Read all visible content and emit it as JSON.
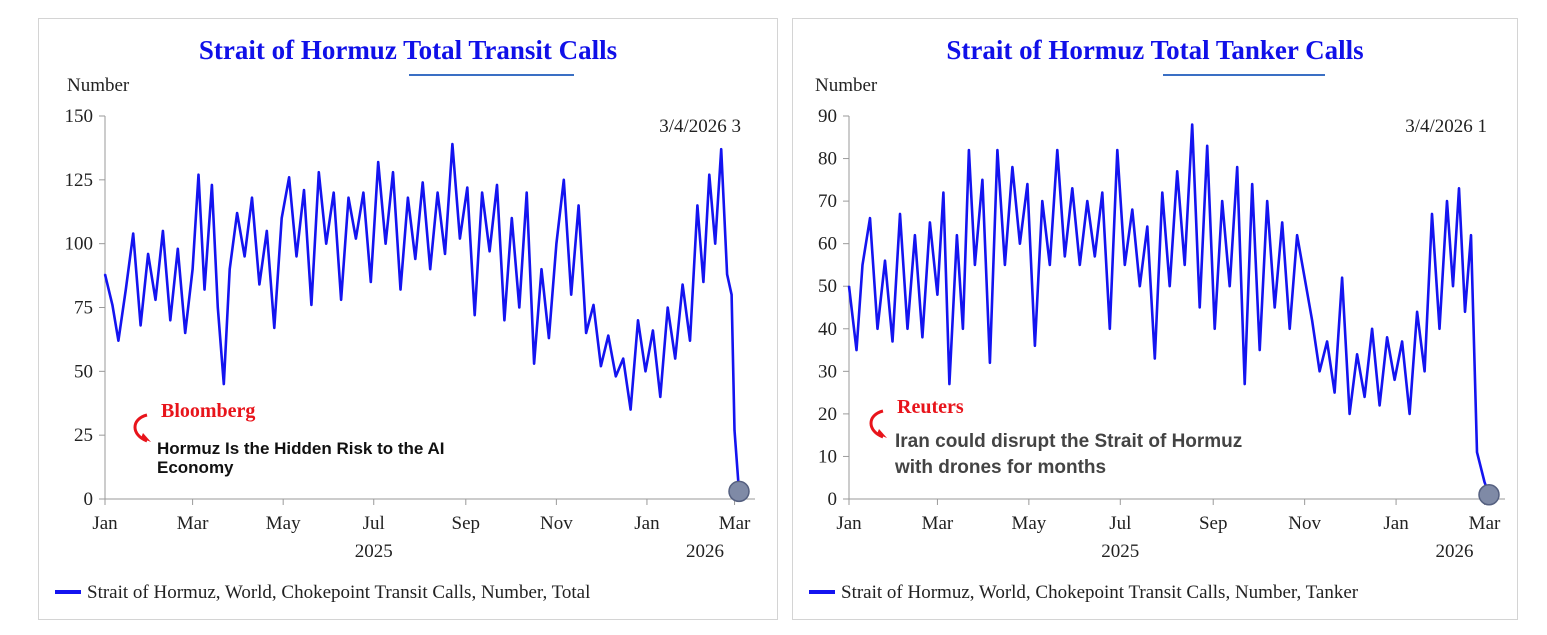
{
  "colors": {
    "series": "#1414f0",
    "title": "#1010e8",
    "annotation_source": "#e8141b",
    "marker": "#7f8aa6",
    "underline": "#3a6fc4"
  },
  "charts": [
    {
      "title_parts": [
        "Strait of Hormuz ",
        "Total Transit",
        " Calls"
      ],
      "unit_label": "Number",
      "last_value_label": "3/4/2026 3",
      "legend": "Strait of Hormuz, World, Chokepoint Transit Calls, Number, Total",
      "annotation": {
        "source": "Bloomberg",
        "headline_lines": [
          "Hormuz Is the Hidden Risk to the AI",
          "Economy"
        ]
      }
    },
    {
      "title_parts": [
        "Strait of Hormuz ",
        "Total Tanker",
        " Calls"
      ],
      "unit_label": "Number",
      "last_value_label": "3/4/2026 1",
      "legend": "Strait of Hormuz, World, Chokepoint Transit Calls, Number, Tanker",
      "annotation": {
        "source": "Reuters",
        "headline_lines": [
          "Iran could disrupt the Strait of Hormuz",
          "with drones for months"
        ]
      }
    }
  ],
  "chart_data": [
    {
      "type": "line",
      "x_range": [
        "2025-01-01",
        "2026-03-04"
      ],
      "ylim": [
        0,
        150
      ],
      "yticks": [
        0,
        25,
        50,
        75,
        100,
        125,
        150
      ],
      "xticks": [
        "Jan",
        "Mar",
        "May",
        "Jul",
        "Sep",
        "Nov",
        "Jan",
        "Mar"
      ],
      "year_labels": [
        "2025",
        "2026"
      ],
      "series": [
        {
          "name": "Strait of Hormuz, World, Chokepoint Transit Calls, Number, Total",
          "points": [
            [
              "2025-01-01",
              88
            ],
            [
              "2025-01-06",
              76
            ],
            [
              "2025-01-10",
              62
            ],
            [
              "2025-01-15",
              82
            ],
            [
              "2025-01-20",
              104
            ],
            [
              "2025-01-25",
              68
            ],
            [
              "2025-01-30",
              96
            ],
            [
              "2025-02-04",
              78
            ],
            [
              "2025-02-09",
              105
            ],
            [
              "2025-02-14",
              70
            ],
            [
              "2025-02-19",
              98
            ],
            [
              "2025-02-24",
              65
            ],
            [
              "2025-03-01",
              90
            ],
            [
              "2025-03-05",
              127
            ],
            [
              "2025-03-09",
              82
            ],
            [
              "2025-03-14",
              123
            ],
            [
              "2025-03-18",
              75
            ],
            [
              "2025-03-22",
              45
            ],
            [
              "2025-03-26",
              90
            ],
            [
              "2025-03-31",
              112
            ],
            [
              "2025-04-05",
              95
            ],
            [
              "2025-04-10",
              118
            ],
            [
              "2025-04-15",
              84
            ],
            [
              "2025-04-20",
              105
            ],
            [
              "2025-04-25",
              67
            ],
            [
              "2025-04-30",
              110
            ],
            [
              "2025-05-05",
              126
            ],
            [
              "2025-05-10",
              95
            ],
            [
              "2025-05-15",
              121
            ],
            [
              "2025-05-20",
              76
            ],
            [
              "2025-05-25",
              128
            ],
            [
              "2025-05-30",
              100
            ],
            [
              "2025-06-04",
              120
            ],
            [
              "2025-06-09",
              78
            ],
            [
              "2025-06-14",
              118
            ],
            [
              "2025-06-19",
              102
            ],
            [
              "2025-06-24",
              120
            ],
            [
              "2025-06-29",
              85
            ],
            [
              "2025-07-04",
              132
            ],
            [
              "2025-07-09",
              100
            ],
            [
              "2025-07-14",
              128
            ],
            [
              "2025-07-19",
              82
            ],
            [
              "2025-07-24",
              118
            ],
            [
              "2025-07-29",
              94
            ],
            [
              "2025-08-03",
              124
            ],
            [
              "2025-08-08",
              90
            ],
            [
              "2025-08-13",
              120
            ],
            [
              "2025-08-18",
              96
            ],
            [
              "2025-08-23",
              139
            ],
            [
              "2025-08-28",
              102
            ],
            [
              "2025-09-02",
              122
            ],
            [
              "2025-09-07",
              72
            ],
            [
              "2025-09-12",
              120
            ],
            [
              "2025-09-17",
              97
            ],
            [
              "2025-09-22",
              123
            ],
            [
              "2025-09-27",
              70
            ],
            [
              "2025-10-02",
              110
            ],
            [
              "2025-10-07",
              75
            ],
            [
              "2025-10-12",
              120
            ],
            [
              "2025-10-17",
              53
            ],
            [
              "2025-10-22",
              90
            ],
            [
              "2025-10-27",
              63
            ],
            [
              "2025-11-01",
              100
            ],
            [
              "2025-11-06",
              125
            ],
            [
              "2025-11-11",
              80
            ],
            [
              "2025-11-16",
              115
            ],
            [
              "2025-11-21",
              65
            ],
            [
              "2025-11-26",
              76
            ],
            [
              "2025-12-01",
              52
            ],
            [
              "2025-12-06",
              64
            ],
            [
              "2025-12-11",
              48
            ],
            [
              "2025-12-16",
              55
            ],
            [
              "2025-12-21",
              35
            ],
            [
              "2025-12-26",
              70
            ],
            [
              "2025-12-31",
              50
            ],
            [
              "2026-01-05",
              66
            ],
            [
              "2026-01-10",
              40
            ],
            [
              "2026-01-15",
              75
            ],
            [
              "2026-01-20",
              55
            ],
            [
              "2026-01-25",
              84
            ],
            [
              "2026-01-30",
              62
            ],
            [
              "2026-02-04",
              115
            ],
            [
              "2026-02-08",
              85
            ],
            [
              "2026-02-12",
              127
            ],
            [
              "2026-02-16",
              100
            ],
            [
              "2026-02-20",
              137
            ],
            [
              "2026-02-24",
              88
            ],
            [
              "2026-02-27",
              80
            ],
            [
              "2026-03-01",
              27
            ],
            [
              "2026-03-04",
              3
            ]
          ]
        }
      ]
    },
    {
      "type": "line",
      "x_range": [
        "2025-01-01",
        "2026-03-04"
      ],
      "ylim": [
        0,
        90
      ],
      "yticks": [
        0,
        10,
        20,
        30,
        40,
        50,
        60,
        70,
        80,
        90
      ],
      "xticks": [
        "Jan",
        "Mar",
        "May",
        "Jul",
        "Sep",
        "Nov",
        "Jan",
        "Mar"
      ],
      "year_labels": [
        "2025",
        "2026"
      ],
      "series": [
        {
          "name": "Strait of Hormuz, World, Chokepoint Transit Calls, Number, Tanker",
          "points": [
            [
              "2025-01-01",
              50
            ],
            [
              "2025-01-06",
              35
            ],
            [
              "2025-01-10",
              55
            ],
            [
              "2025-01-15",
              66
            ],
            [
              "2025-01-20",
              40
            ],
            [
              "2025-01-25",
              56
            ],
            [
              "2025-01-30",
              37
            ],
            [
              "2025-02-04",
              67
            ],
            [
              "2025-02-09",
              40
            ],
            [
              "2025-02-14",
              62
            ],
            [
              "2025-02-19",
              38
            ],
            [
              "2025-02-24",
              65
            ],
            [
              "2025-03-01",
              48
            ],
            [
              "2025-03-05",
              72
            ],
            [
              "2025-03-09",
              27
            ],
            [
              "2025-03-14",
              62
            ],
            [
              "2025-03-18",
              40
            ],
            [
              "2025-03-22",
              82
            ],
            [
              "2025-03-26",
              55
            ],
            [
              "2025-03-31",
              75
            ],
            [
              "2025-04-05",
              32
            ],
            [
              "2025-04-10",
              82
            ],
            [
              "2025-04-15",
              55
            ],
            [
              "2025-04-20",
              78
            ],
            [
              "2025-04-25",
              60
            ],
            [
              "2025-04-30",
              74
            ],
            [
              "2025-05-05",
              36
            ],
            [
              "2025-05-10",
              70
            ],
            [
              "2025-05-15",
              55
            ],
            [
              "2025-05-20",
              82
            ],
            [
              "2025-05-25",
              57
            ],
            [
              "2025-05-30",
              73
            ],
            [
              "2025-06-04",
              55
            ],
            [
              "2025-06-09",
              70
            ],
            [
              "2025-06-14",
              57
            ],
            [
              "2025-06-19",
              72
            ],
            [
              "2025-06-24",
              40
            ],
            [
              "2025-06-29",
              82
            ],
            [
              "2025-07-04",
              55
            ],
            [
              "2025-07-09",
              68
            ],
            [
              "2025-07-14",
              50
            ],
            [
              "2025-07-19",
              64
            ],
            [
              "2025-07-24",
              33
            ],
            [
              "2025-07-29",
              72
            ],
            [
              "2025-08-03",
              50
            ],
            [
              "2025-08-08",
              77
            ],
            [
              "2025-08-13",
              55
            ],
            [
              "2025-08-18",
              88
            ],
            [
              "2025-08-23",
              45
            ],
            [
              "2025-08-28",
              83
            ],
            [
              "2025-09-02",
              40
            ],
            [
              "2025-09-07",
              70
            ],
            [
              "2025-09-12",
              50
            ],
            [
              "2025-09-17",
              78
            ],
            [
              "2025-09-22",
              27
            ],
            [
              "2025-09-27",
              74
            ],
            [
              "2025-10-02",
              35
            ],
            [
              "2025-10-07",
              70
            ],
            [
              "2025-10-12",
              45
            ],
            [
              "2025-10-17",
              65
            ],
            [
              "2025-10-22",
              40
            ],
            [
              "2025-10-27",
              62
            ],
            [
              "2025-11-01",
              52
            ],
            [
              "2025-11-06",
              42
            ],
            [
              "2025-11-11",
              30
            ],
            [
              "2025-11-16",
              37
            ],
            [
              "2025-11-21",
              25
            ],
            [
              "2025-11-26",
              52
            ],
            [
              "2025-12-01",
              20
            ],
            [
              "2025-12-06",
              34
            ],
            [
              "2025-12-11",
              24
            ],
            [
              "2025-12-16",
              40
            ],
            [
              "2025-12-21",
              22
            ],
            [
              "2025-12-26",
              38
            ],
            [
              "2025-12-31",
              28
            ],
            [
              "2026-01-05",
              37
            ],
            [
              "2026-01-10",
              20
            ],
            [
              "2026-01-15",
              44
            ],
            [
              "2026-01-20",
              30
            ],
            [
              "2026-01-25",
              67
            ],
            [
              "2026-01-30",
              40
            ],
            [
              "2026-02-04",
              70
            ],
            [
              "2026-02-08",
              50
            ],
            [
              "2026-02-12",
              73
            ],
            [
              "2026-02-16",
              44
            ],
            [
              "2026-02-20",
              62
            ],
            [
              "2026-02-24",
              11
            ],
            [
              "2026-03-01",
              4
            ],
            [
              "2026-03-04",
              1
            ]
          ]
        }
      ]
    }
  ]
}
